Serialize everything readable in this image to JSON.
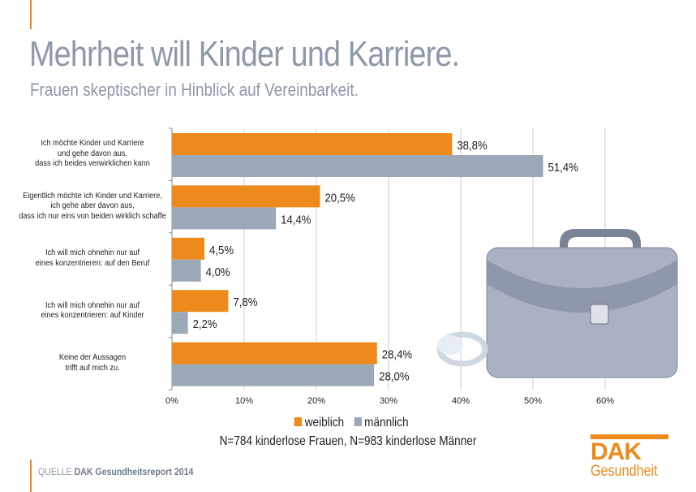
{
  "header": {
    "title": "Mehrheit will Kinder und Karriere.",
    "subtitle": "Frauen skeptischer in Hinblick auf Vereinbarkeit."
  },
  "chart_data": {
    "type": "bar",
    "orientation": "horizontal",
    "categories": [
      "Ich möchte Kinder und Karriere\nund gehe davon aus,\ndass ich beides verwirklichen kann",
      "Eigentlich möchte ich Kinder und Karriere,\nich gehe aber davon aus,\ndass ich nur eins von beiden wirklich schaffe",
      "Ich will mich ohnehin nur auf\neines konzentrieren: auf den Beruf",
      "Ich will mich ohnehin nur auf\neines konzentrieren: auf Kinder",
      "Keine der Aussagen\ntrifft auf mich zu."
    ],
    "series": [
      {
        "name": "weiblich",
        "color": "#ee8a1c",
        "values": [
          38.8,
          20.5,
          4.5,
          7.8,
          28.4
        ],
        "labels": [
          "38,8%",
          "20,5%",
          "4,5%",
          "7,8%",
          "28,4%"
        ]
      },
      {
        "name": "männlich",
        "color": "#9aa8b8",
        "values": [
          51.4,
          14.4,
          4.0,
          2.2,
          28.0
        ],
        "labels": [
          "51,4%",
          "14,4%",
          "4,0%",
          "2,2%",
          "28,0%"
        ]
      }
    ],
    "xlim": [
      0,
      60
    ],
    "xticks": [
      "0%",
      "10%",
      "20%",
      "30%",
      "40%",
      "50%",
      "60%"
    ],
    "grid": true,
    "legend": "bottom"
  },
  "note": "N=784 kinderlose Frauen, N=983 kinderlose Männer",
  "footer": {
    "source_prefix": "QUELLE",
    "source": "DAK Gesundheitsreport 2014",
    "logo_text": "DAK",
    "logo_sub": "Gesundheit"
  }
}
